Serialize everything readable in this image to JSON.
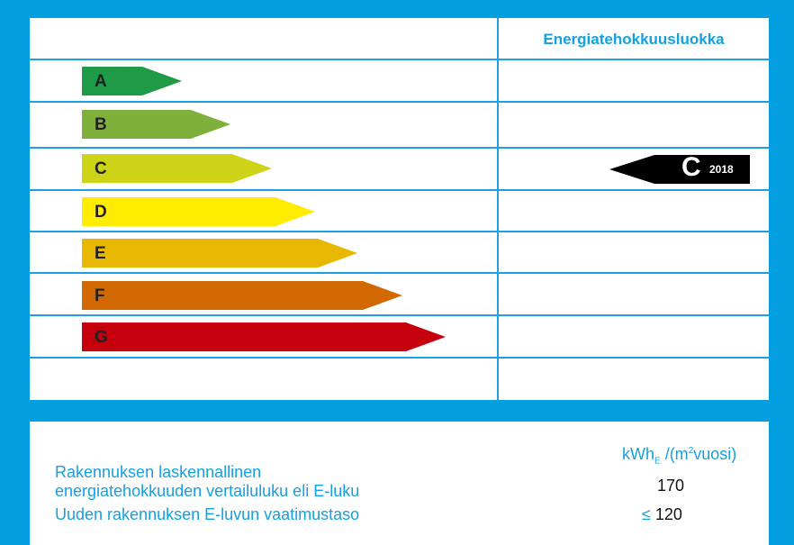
{
  "header": {
    "title": "Energiatehokkuusluokka"
  },
  "classes": [
    {
      "label": "A",
      "color": "#1f9a47"
    },
    {
      "label": "B",
      "color": "#80b03c"
    },
    {
      "label": "C",
      "color": "#cdd317"
    },
    {
      "label": "D",
      "color": "#ffec00"
    },
    {
      "label": "E",
      "color": "#e8b700"
    },
    {
      "label": "F",
      "color": "#d16800"
    },
    {
      "label": "G",
      "color": "#c5000c"
    }
  ],
  "current": {
    "class": "C",
    "year": "2018",
    "color": "#000000"
  },
  "summary": {
    "unit_main": "kWh",
    "unit_sub": "E",
    "unit_rest": "/(m",
    "unit_sup": "2",
    "unit_end": "vuosi)",
    "label1_line1": "Rakennuksen laskennallinen",
    "label1_line2": "energiatehokkuuden vertailuluku eli E-luku",
    "value1": "170",
    "label2": "Uuden rakennuksen E-luvun vaatimustaso",
    "value2_prefix": "≤",
    "value2": "120"
  }
}
